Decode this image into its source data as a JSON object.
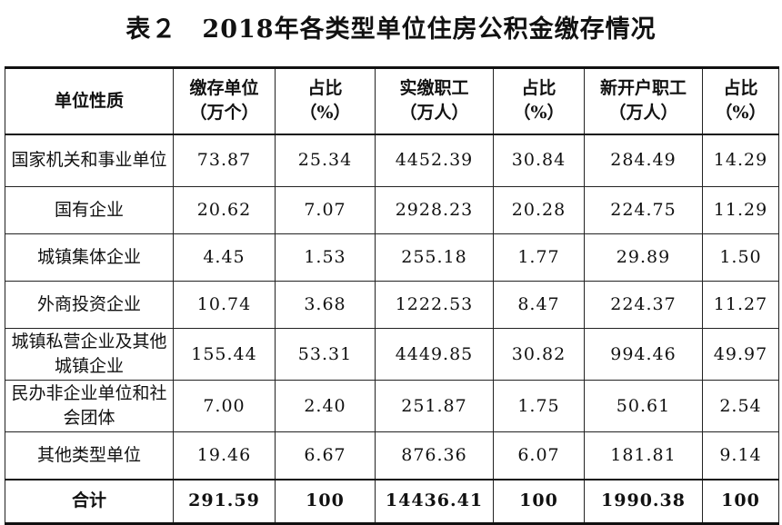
{
  "title": "表２　2018年各类型单位住房公积金缴存情况",
  "columns": [
    {
      "line1": "单位性质",
      "line2": ""
    },
    {
      "line1": "缴存单位",
      "line2": "（万个）"
    },
    {
      "line1": "占比",
      "line2": "（%）"
    },
    {
      "line1": "实缴职工",
      "line2": "（万人）"
    },
    {
      "line1": "占比",
      "line2": "（%）"
    },
    {
      "line1": "新开户职工",
      "line2": "（万人）"
    },
    {
      "line1": "占比",
      "line2": "（%）"
    }
  ],
  "rows": [
    {
      "type": "国家机关和事业单位",
      "units": "73.87",
      "units_pct": "25.34",
      "workers": "4452.39",
      "workers_pct": "30.84",
      "new_workers": "284.49",
      "new_pct": "14.29"
    },
    {
      "type": "国有企业",
      "units": "20.62",
      "units_pct": "7.07",
      "workers": "2928.23",
      "workers_pct": "20.28",
      "new_workers": "224.75",
      "new_pct": "11.29"
    },
    {
      "type": "城镇集体企业",
      "units": "4.45",
      "units_pct": "1.53",
      "workers": "255.18",
      "workers_pct": "1.77",
      "new_workers": "29.89",
      "new_pct": "1.50"
    },
    {
      "type": "外商投资企业",
      "units": "10.74",
      "units_pct": "3.68",
      "workers": "1222.53",
      "workers_pct": "8.47",
      "new_workers": "224.37",
      "new_pct": "11.27"
    },
    {
      "type": "城镇私营企业及其他城镇企业",
      "units": "155.44",
      "units_pct": "53.31",
      "workers": "4449.85",
      "workers_pct": "30.82",
      "new_workers": "994.46",
      "new_pct": "49.97"
    },
    {
      "type": "民办非企业单位和社会团体",
      "units": "7.00",
      "units_pct": "2.40",
      "workers": "251.87",
      "workers_pct": "1.75",
      "new_workers": "50.61",
      "new_pct": "2.54"
    },
    {
      "type": "其他类型单位",
      "units": "19.46",
      "units_pct": "6.67",
      "workers": "876.36",
      "workers_pct": "6.07",
      "new_workers": "181.81",
      "new_pct": "9.14"
    }
  ],
  "total": {
    "type": "合计",
    "units": "291.59",
    "units_pct": "100",
    "workers": "14436.41",
    "workers_pct": "100",
    "new_workers": "1990.38",
    "new_pct": "100"
  }
}
